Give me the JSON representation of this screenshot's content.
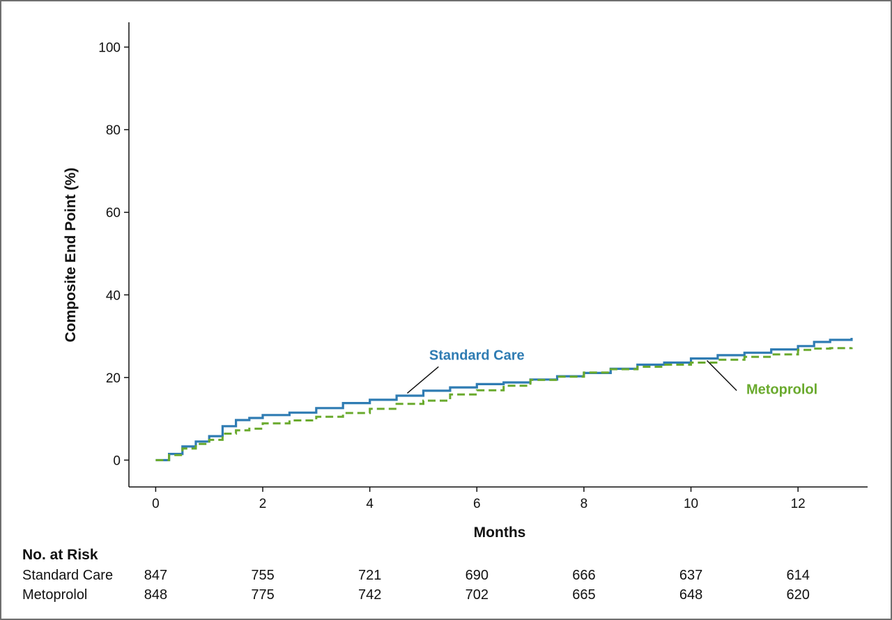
{
  "chart_data": {
    "type": "line",
    "title": "",
    "xlabel": "Months",
    "ylabel": "Composite End Point (%)",
    "xlim": [
      -0.5,
      13.3
    ],
    "ylim": [
      -6.5,
      106
    ],
    "xticks": [
      0,
      2,
      4,
      6,
      8,
      10,
      12
    ],
    "yticks": [
      0,
      20,
      40,
      60,
      80,
      100
    ],
    "grid": false,
    "series": [
      {
        "name": "Standard Care",
        "color": "#2f7cb3",
        "style": "solid",
        "x": [
          0,
          0.25,
          0.5,
          0.75,
          1.0,
          1.25,
          1.5,
          1.75,
          2.0,
          2.5,
          3.0,
          3.5,
          4.0,
          4.5,
          5.0,
          5.5,
          6.0,
          6.5,
          7.0,
          7.5,
          8.0,
          8.5,
          9.0,
          9.5,
          10.0,
          10.5,
          11.0,
          11.5,
          12.0,
          12.3,
          12.6,
          13.0
        ],
        "y": [
          0,
          1.5,
          3.3,
          4.5,
          5.8,
          8.2,
          9.7,
          10.2,
          10.9,
          11.5,
          12.6,
          13.8,
          14.6,
          15.6,
          16.8,
          17.6,
          18.4,
          18.8,
          19.5,
          20.3,
          21.1,
          22.1,
          23.1,
          23.6,
          24.6,
          25.4,
          26.0,
          26.8,
          27.6,
          28.6,
          29.1,
          29.6
        ]
      },
      {
        "name": "Metoprolol",
        "color": "#6aaa2e",
        "style": "dashed",
        "x": [
          0,
          0.25,
          0.5,
          0.75,
          1.0,
          1.25,
          1.5,
          1.75,
          2.0,
          2.5,
          3.0,
          3.5,
          4.0,
          4.5,
          5.0,
          5.5,
          6.0,
          6.5,
          7.0,
          7.5,
          8.0,
          8.5,
          9.0,
          9.5,
          10.0,
          10.5,
          11.0,
          11.5,
          12.0,
          12.3,
          12.6,
          13.0
        ],
        "y": [
          0,
          1.2,
          2.8,
          3.9,
          4.9,
          6.4,
          7.2,
          7.6,
          8.9,
          9.6,
          10.5,
          11.4,
          12.4,
          13.6,
          14.4,
          15.9,
          16.9,
          18.0,
          19.4,
          20.2,
          21.2,
          22.0,
          22.6,
          23.1,
          23.6,
          24.3,
          25.0,
          25.6,
          26.7,
          27.0,
          27.1,
          27.3
        ]
      }
    ],
    "annotations": [
      {
        "text": "Standard Care",
        "series": 0,
        "x": 6.0,
        "y": 24.3,
        "pointer_to_x": 4.7,
        "pointer_to_y": 16.2
      },
      {
        "text": "Metoprolol",
        "series": 1,
        "x": 11.7,
        "y": 16.0,
        "pointer_to_x": 10.3,
        "pointer_to_y": 24.1
      }
    ],
    "risk_table": {
      "heading": "No. at Risk",
      "times": [
        0,
        2,
        4,
        6,
        8,
        10,
        12
      ],
      "rows": [
        {
          "label": "Standard Care",
          "values": [
            "847",
            "755",
            "721",
            "690",
            "666",
            "637",
            "614"
          ]
        },
        {
          "label": "Metoprolol",
          "values": [
            "848",
            "775",
            "742",
            "702",
            "665",
            "648",
            "620"
          ]
        }
      ]
    }
  }
}
